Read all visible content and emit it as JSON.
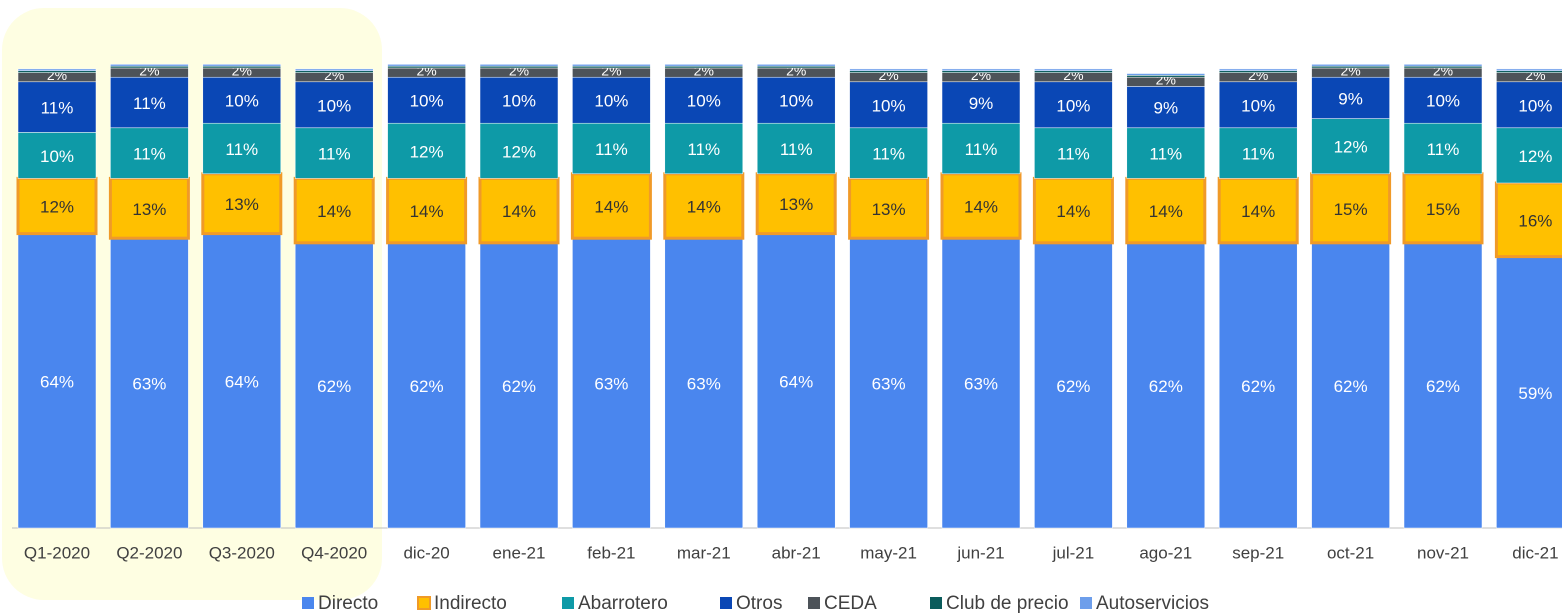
{
  "chart_data": {
    "type": "stacked_bar",
    "categories": [
      "Q1-2020",
      "Q2-2020",
      "Q3-2020",
      "Q4-2020",
      "dic-20",
      "ene-21",
      "feb-21",
      "mar-21",
      "abr-21",
      "may-21",
      "jun-21",
      "jul-21",
      "ago-21",
      "sep-21",
      "oct-21",
      "nov-21",
      "dic-21"
    ],
    "ylim": [
      0,
      100
    ],
    "legend": "bottom",
    "series": [
      {
        "name": "Directo",
        "color": "#4a86ee",
        "values": [
          64,
          63,
          64,
          62,
          62,
          62,
          63,
          63,
          64,
          63,
          63,
          62,
          62,
          62,
          62,
          62,
          59
        ],
        "value_labels": [
          "64%",
          "63%",
          "64%",
          "62%",
          "62%",
          "62%",
          "63%",
          "63%",
          "64%",
          "63%",
          "63%",
          "62%",
          "62%",
          "62%",
          "62%",
          "62%",
          "59%"
        ]
      },
      {
        "name": "Indirecto",
        "color": "#ffc000",
        "values": [
          12,
          13,
          13,
          14,
          14,
          14,
          14,
          14,
          13,
          13,
          14,
          14,
          14,
          14,
          15,
          15,
          16
        ],
        "value_labels": [
          "12%",
          "13%",
          "13%",
          "14%",
          "14%",
          "14%",
          "14%",
          "14%",
          "13%",
          "13%",
          "14%",
          "14%",
          "14%",
          "14%",
          "15%",
          "15%",
          "16%"
        ]
      },
      {
        "name": "Abarrotero",
        "color": "#0e9aa7",
        "values": [
          10,
          11,
          11,
          11,
          12,
          12,
          11,
          11,
          11,
          11,
          11,
          11,
          11,
          11,
          12,
          11,
          12
        ],
        "value_labels": [
          "10%",
          "11%",
          "11%",
          "11%",
          "12%",
          "12%",
          "11%",
          "11%",
          "11%",
          "11%",
          "11%",
          "11%",
          "11%",
          "11%",
          "12%",
          "11%",
          "12%"
        ]
      },
      {
        "name": "Otros",
        "color": "#0a47b5",
        "values": [
          11,
          11,
          10,
          10,
          10,
          10,
          10,
          10,
          10,
          10,
          9,
          10,
          9,
          10,
          9,
          10,
          10
        ],
        "value_labels": [
          "11%",
          "11%",
          "10%",
          "10%",
          "10%",
          "10%",
          "10%",
          "10%",
          "10%",
          "10%",
          "9%",
          "10%",
          "9%",
          "10%",
          "9%",
          "10%",
          "10%"
        ]
      },
      {
        "name": "CEDA",
        "color": "#4d5359",
        "values": [
          2,
          2,
          2,
          2,
          2,
          2,
          2,
          2,
          2,
          2,
          2,
          2,
          2,
          2,
          2,
          2,
          2
        ],
        "value_labels": [
          "2%",
          "2%",
          "2%",
          "2%",
          "2%",
          "2%",
          "2%",
          "2%",
          "2%",
          "2%",
          "2%",
          "2%",
          "2%",
          "2%",
          "2%",
          "2%",
          "2%"
        ]
      },
      {
        "name": "Club de precio",
        "color": "#0b5c5c",
        "values": [
          0.4,
          0.4,
          0.4,
          0.4,
          0.4,
          0.4,
          0.4,
          0.4,
          0.4,
          0.4,
          0.4,
          0.4,
          0.4,
          0.4,
          0.4,
          0.4,
          0.4
        ]
      },
      {
        "name": "Autoservicios",
        "color": "#6d9eeb",
        "values": [
          0.4,
          0.4,
          0.4,
          0.4,
          0.4,
          0.4,
          0.4,
          0.4,
          0.4,
          0.4,
          0.4,
          0.4,
          0.4,
          0.4,
          0.4,
          0.4,
          0.4
        ]
      }
    ]
  }
}
